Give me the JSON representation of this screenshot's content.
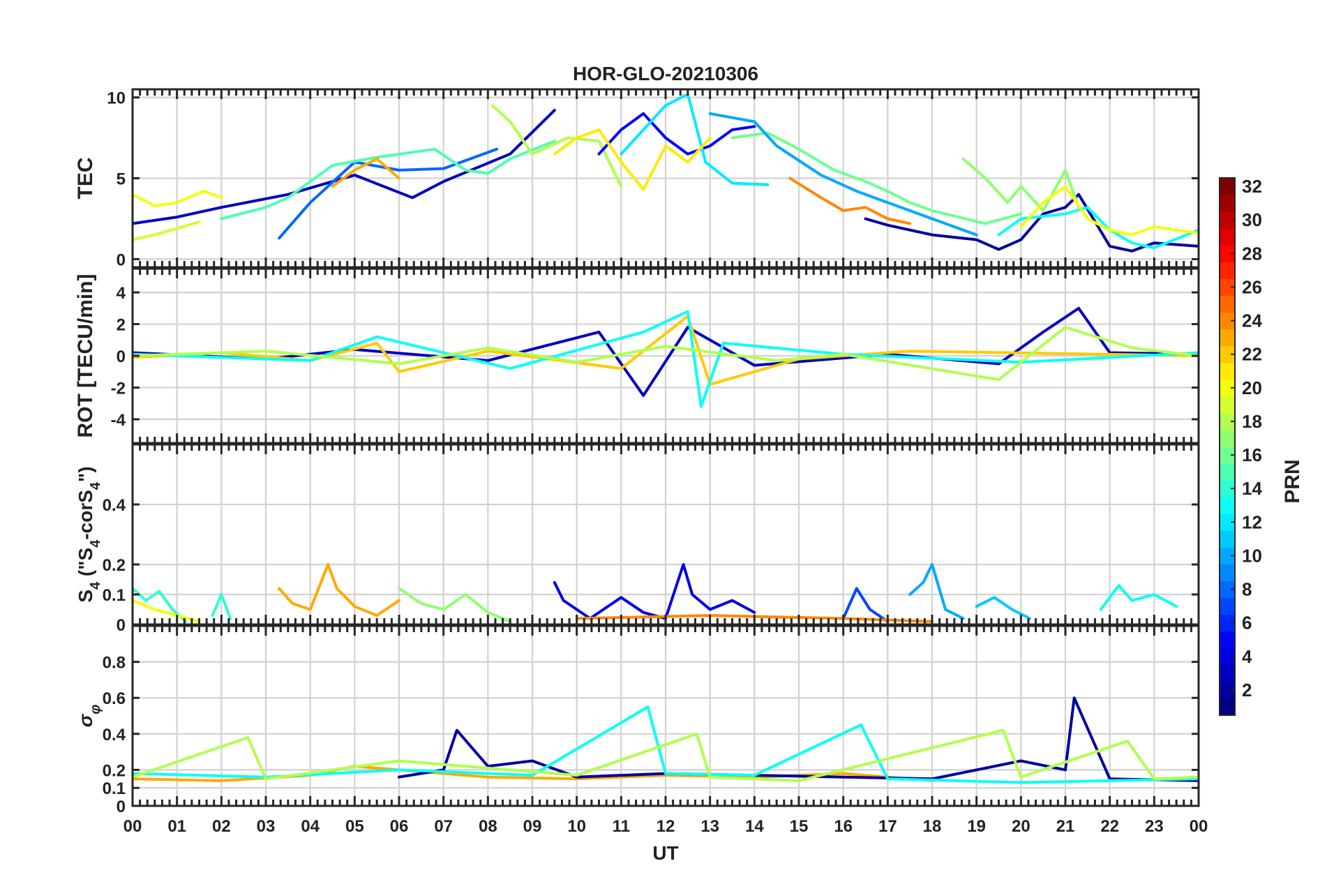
{
  "chart_data": {
    "type": "line",
    "title": "HOR-GLO-20210306",
    "xlabel": "UT",
    "x_range_hours": [
      0,
      24
    ],
    "x_tick_labels": [
      "00",
      "01",
      "02",
      "03",
      "04",
      "05",
      "06",
      "07",
      "08",
      "09",
      "10",
      "11",
      "12",
      "13",
      "14",
      "15",
      "16",
      "17",
      "18",
      "19",
      "20",
      "21",
      "22",
      "23",
      "00"
    ],
    "grid": true,
    "series_color_by": "PRN",
    "colorbar": {
      "label": "PRN",
      "range": [
        1,
        32
      ],
      "ticks": [
        "2",
        "4",
        "6",
        "8",
        "10",
        "12",
        "14",
        "16",
        "18",
        "20",
        "22",
        "24",
        "26",
        "28",
        "30",
        "32"
      ],
      "colormap": "jet"
    },
    "panels": [
      {
        "id": "tec",
        "ylabel": "TEC",
        "ylim": [
          -0.5,
          10.5
        ],
        "y_ticks": [
          "0",
          "5",
          "10"
        ],
        "y_tick_values": [
          0,
          5,
          10
        ],
        "series": [
          {
            "prn": 3,
            "x": [
              0,
              1,
              2,
              3.5,
              5,
              6.3,
              7,
              8.5,
              9.5
            ],
            "y": [
              2.2,
              2.6,
              3.2,
              4,
              5.2,
              3.8,
              4.8,
              6.5,
              9.2
            ]
          },
          {
            "prn": 20,
            "x": [
              0,
              0.5,
              1,
              1.6,
              2
            ],
            "y": [
              4,
              3.3,
              3.5,
              4.2,
              3.8
            ]
          },
          {
            "prn": 19,
            "x": [
              0,
              0.5,
              1,
              1.5
            ],
            "y": [
              1.2,
              1.5,
              1.9,
              2.3
            ]
          },
          {
            "prn": 8,
            "x": [
              3.3,
              4,
              5,
              6,
              7,
              8.2
            ],
            "y": [
              1.3,
              3.5,
              6,
              5.5,
              5.6,
              6.8
            ]
          },
          {
            "prn": 15,
            "x": [
              2,
              3,
              3.5,
              4.5,
              5.5,
              6.8,
              7.5,
              8,
              8.5,
              9.5
            ],
            "y": [
              2.5,
              3.2,
              3.8,
              5.8,
              6.3,
              6.8,
              5.5,
              5.3,
              6.2,
              7.3
            ]
          },
          {
            "prn": 23,
            "x": [
              4.5,
              5,
              5.5,
              6
            ],
            "y": [
              4.5,
              5.5,
              6.2,
              5
            ]
          },
          {
            "prn": 18,
            "x": [
              8.1,
              8.5,
              9,
              9.8,
              10.5,
              11
            ],
            "y": [
              9.5,
              8.5,
              6.5,
              7.5,
              7.3,
              4.5
            ]
          },
          {
            "prn": 5,
            "x": [
              10.5,
              11,
              11.5,
              12,
              12.5,
              13,
              13.5,
              14
            ],
            "y": [
              6.5,
              8,
              9,
              7.5,
              6.5,
              7,
              8,
              8.2
            ]
          },
          {
            "prn": 12,
            "x": [
              11,
              11.5,
              12,
              12.5,
              12.9,
              13.5,
              14.3
            ],
            "y": [
              6.5,
              8,
              9.5,
              10.2,
              6,
              4.7,
              4.6
            ]
          },
          {
            "prn": 21,
            "x": [
              9.5,
              10,
              10.5,
              11,
              11.5,
              12,
              12.5,
              13
            ],
            "y": [
              6.5,
              7.5,
              8,
              6,
              4.3,
              7,
              6,
              7.5
            ]
          },
          {
            "prn": 16,
            "x": [
              13.5,
              14.3,
              15,
              15.8,
              16.5,
              17,
              17.5,
              18,
              19.2,
              20
            ],
            "y": [
              7.5,
              7.8,
              6.8,
              5.5,
              4.8,
              4.2,
              3.5,
              3,
              2.2,
              2.8
            ]
          },
          {
            "prn": 10,
            "x": [
              13,
              14,
              14.5,
              15.5,
              16.3,
              17,
              18,
              19
            ],
            "y": [
              9,
              8.5,
              7,
              5.2,
              4.2,
              3.5,
              2.5,
              1.5
            ]
          },
          {
            "prn": 24,
            "x": [
              14.8,
              15.5,
              16,
              16.5,
              17,
              17.5
            ],
            "y": [
              5,
              3.8,
              3,
              3.2,
              2.5,
              2.2
            ]
          },
          {
            "prn": 2,
            "x": [
              16.5,
              17,
              18,
              19,
              19.5,
              20,
              20.5,
              21,
              21.3,
              22,
              22.5,
              23,
              24
            ],
            "y": [
              2.5,
              2.1,
              1.5,
              1.2,
              0.6,
              1.2,
              2.8,
              3.2,
              4,
              0.8,
              0.5,
              1,
              0.8
            ]
          },
          {
            "prn": 17,
            "x": [
              18.7,
              19.2,
              19.7,
              20,
              20.5,
              21,
              21.3
            ],
            "y": [
              6.2,
              5,
              3.5,
              4.5,
              3,
              5.5,
              3.2
            ]
          },
          {
            "prn": 13,
            "x": [
              19.5,
              20,
              21,
              21.5,
              22,
              22.5,
              23,
              24
            ],
            "y": [
              1.5,
              2.5,
              2.8,
              3.2,
              1.8,
              1,
              0.7,
              1.8
            ]
          },
          {
            "prn": 20,
            "x": [
              20,
              20.5,
              21,
              21.5,
              22,
              22.5,
              23,
              24
            ],
            "y": [
              2,
              3.5,
              4.5,
              2.5,
              1.8,
              1.5,
              2,
              1.6
            ]
          }
        ]
      },
      {
        "id": "rot",
        "ylabel": "ROT [TECU/min]",
        "ylim": [
          -5.5,
          5.5
        ],
        "y_ticks": [
          "-4",
          "-2",
          "0",
          "2",
          "4"
        ],
        "y_tick_values": [
          -4,
          -2,
          0,
          2,
          4
        ],
        "series": [
          {
            "prn": 3,
            "x": [
              0,
              3,
              5,
              8,
              10.5,
              11.5,
              12.5,
              14,
              17,
              19.5,
              20.5,
              21.3,
              22,
              24
            ],
            "y": [
              0.2,
              -0.2,
              0.4,
              -0.3,
              1.5,
              -2.5,
              1.8,
              -0.6,
              0.1,
              -0.5,
              1.5,
              3,
              0.2,
              0.1
            ]
          },
          {
            "prn": 22,
            "x": [
              0,
              2,
              4,
              5.5,
              6,
              8,
              11,
              12.5,
              13,
              15,
              17.5,
              24
            ],
            "y": [
              -0.1,
              0.2,
              -0.3,
              0.8,
              -1,
              0.3,
              -0.8,
              2.5,
              -1.8,
              -0.2,
              0.3,
              0
            ]
          },
          {
            "prn": 13,
            "x": [
              0,
              4,
              5.5,
              8.5,
              11.5,
              12.5,
              12.8,
              13.3,
              16,
              20,
              24
            ],
            "y": [
              0.1,
              -0.3,
              1.2,
              -0.8,
              1.5,
              2.8,
              -3.2,
              0.8,
              0.1,
              -0.4,
              0.2
            ]
          },
          {
            "prn": 18,
            "x": [
              0,
              3,
              6,
              8,
              10,
              12,
              14.5,
              16,
              19.5,
              21,
              22.5,
              24
            ],
            "y": [
              0,
              0.3,
              -0.5,
              0.5,
              -0.4,
              0.6,
              -0.3,
              0.1,
              -1.5,
              1.8,
              0.5,
              0
            ]
          }
        ]
      },
      {
        "id": "s4",
        "ylabel": "S4 (\"S4-corS4\")",
        "ylabel_prefix": "S",
        "ylabel_sub": "4",
        "ylabel_mid": " (\"S",
        "ylabel_mid2": "-corS",
        "ylabel_end": "\")",
        "ylim": [
          0,
          0.6
        ],
        "y_ticks": [
          "0",
          "0.1",
          "0.2",
          "0.4"
        ],
        "y_tick_values": [
          0,
          0.1,
          0.2,
          0.4
        ],
        "series": [
          {
            "prn": 14,
            "x": [
              0,
              0.3,
              0.6,
              0.9,
              1.2
            ],
            "y": [
              0.12,
              0.08,
              0.11,
              0.05,
              0.01
            ]
          },
          {
            "prn": 20,
            "x": [
              0,
              0.5,
              1,
              1.5
            ],
            "y": [
              0.08,
              0.05,
              0.03,
              0.01
            ]
          },
          {
            "prn": 14,
            "x": [
              1.8,
              2,
              2.2
            ],
            "y": [
              0.03,
              0.1,
              0.02
            ]
          },
          {
            "prn": 23,
            "x": [
              3.3,
              3.6,
              4,
              4.4,
              4.6,
              5,
              5.5,
              6
            ],
            "y": [
              0.12,
              0.07,
              0.05,
              0.2,
              0.12,
              0.06,
              0.03,
              0.08
            ]
          },
          {
            "prn": 17,
            "x": [
              6,
              6.5,
              7,
              7.5,
              8,
              8.5
            ],
            "y": [
              0.12,
              0.07,
              0.05,
              0.1,
              0.04,
              0.01
            ]
          },
          {
            "prn": 4,
            "x": [
              9.5,
              9.7,
              10,
              10.3,
              11,
              11.5,
              12,
              12.4,
              12.6,
              13,
              13.5,
              14
            ],
            "y": [
              0.14,
              0.08,
              0.05,
              0.02,
              0.09,
              0.04,
              0.02,
              0.2,
              0.1,
              0.05,
              0.08,
              0.04
            ]
          },
          {
            "prn": 7,
            "x": [
              16,
              16.3,
              16.6,
              17
            ],
            "y": [
              0.02,
              0.12,
              0.05,
              0.01
            ]
          },
          {
            "prn": 10,
            "x": [
              17.5,
              17.8,
              18,
              18.3,
              18.7
            ],
            "y": [
              0.1,
              0.14,
              0.2,
              0.05,
              0.02
            ]
          },
          {
            "prn": 11,
            "x": [
              19,
              19.4,
              19.8,
              20.2
            ],
            "y": [
              0.06,
              0.09,
              0.05,
              0.02
            ]
          },
          {
            "prn": 13,
            "x": [
              21.8,
              22.2,
              22.5,
              23,
              23.5
            ],
            "y": [
              0.05,
              0.13,
              0.08,
              0.1,
              0.06
            ]
          },
          {
            "prn": 24,
            "x": [
              10,
              13,
              16,
              18
            ],
            "y": [
              0.02,
              0.03,
              0.02,
              0.01
            ]
          }
        ]
      },
      {
        "id": "sigma",
        "ylabel": "σφ",
        "ylabel_sym": "σ",
        "ylabel_sub": "φ",
        "ylim": [
          0,
          1
        ],
        "y_ticks": [
          "0",
          "0.1",
          "0.2",
          "0.4",
          "0.6",
          "0.8"
        ],
        "y_tick_values": [
          0,
          0.1,
          0.2,
          0.4,
          0.6,
          0.8
        ],
        "series": [
          {
            "prn": 23,
            "x": [
              0,
              2,
              4,
              5,
              6,
              8,
              10,
              12,
              14,
              16,
              17,
              18
            ],
            "y": [
              0.15,
              0.14,
              0.17,
              0.22,
              0.2,
              0.16,
              0.15,
              0.17,
              0.16,
              0.18,
              0.16,
              0.14
            ]
          },
          {
            "prn": 2,
            "x": [
              6,
              7,
              7.3,
              8,
              9,
              10,
              12,
              18,
              19,
              20,
              21,
              21.2,
              22,
              24
            ],
            "y": [
              0.16,
              0.2,
              0.42,
              0.22,
              0.25,
              0.16,
              0.18,
              0.15,
              0.2,
              0.25,
              0.2,
              0.6,
              0.15,
              0.14
            ]
          },
          {
            "prn": 13,
            "x": [
              0,
              3,
              6,
              9,
              11.6,
              12,
              14,
              16.4,
              17,
              20,
              22,
              24
            ],
            "y": [
              0.18,
              0.16,
              0.2,
              0.17,
              0.55,
              0.18,
              0.17,
              0.45,
              0.15,
              0.13,
              0.14,
              0.15
            ]
          },
          {
            "prn": 18,
            "x": [
              0,
              2.6,
              3,
              6,
              10,
              12.7,
              13,
              15,
              19.6,
              20,
              22.4,
              23,
              24
            ],
            "y": [
              0.16,
              0.38,
              0.15,
              0.25,
              0.17,
              0.4,
              0.16,
              0.14,
              0.42,
              0.16,
              0.36,
              0.15,
              0.16
            ]
          }
        ]
      }
    ]
  }
}
